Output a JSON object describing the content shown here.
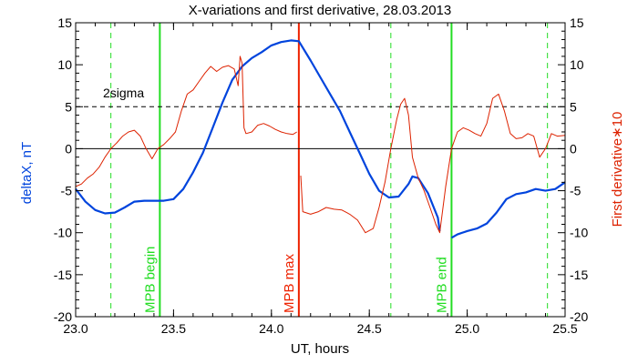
{
  "chart_data": {
    "type": "line",
    "title": "X-variations and first derivative, 28.03.2013",
    "xlabel": "UT, hours",
    "ylabel_left": "deltaX, nT",
    "ylabel_right": "First derivative∗10",
    "xlim": [
      23.0,
      25.5
    ],
    "ylim": [
      -20,
      15
    ],
    "x_ticks": [
      "23.0",
      "23.5",
      "24.0",
      "24.5",
      "25.0",
      "25.5"
    ],
    "x_tick_values": [
      23.0,
      23.5,
      24.0,
      24.5,
      25.0,
      25.5
    ],
    "y_ticks_left": [
      "15",
      "10",
      "5",
      "0",
      "-5",
      "-10",
      "-15",
      "-20"
    ],
    "y_ticks_right": [
      "15",
      "10",
      "5",
      "0",
      "-5",
      "-10",
      "-15",
      "-20"
    ],
    "y_tick_values": [
      15,
      10,
      5,
      0,
      -5,
      -10,
      -15,
      -20
    ],
    "grid": false,
    "sigma_label": "2sigma",
    "sigma_level": 5,
    "zero_level": 0,
    "colors": {
      "deltaX": "#0044dd",
      "derivative": "#dd2200",
      "mpb_markers": "#22dd22",
      "max_marker": "#ee2200",
      "axes": "#000000"
    },
    "markers": [
      {
        "name": "MPB begin",
        "x": 23.43,
        "style": "solid",
        "color": "#22dd22"
      },
      {
        "name": "MPB max",
        "x": 24.14,
        "style": "solid",
        "color": "#ee2200"
      },
      {
        "name": "MPB end",
        "x": 24.92,
        "style": "solid",
        "color": "#22dd22"
      }
    ],
    "dashed_markers": [
      23.18,
      24.61,
      25.41
    ],
    "series": [
      {
        "id": "deltaX",
        "name": "deltaX, nT",
        "color": "#0044dd",
        "segments": [
          {
            "x": [
              23.0,
              23.05,
              23.1,
              23.15,
              23.2,
              23.25,
              23.3,
              23.35,
              23.4,
              23.45,
              23.5,
              23.55,
              23.6,
              23.65,
              23.7,
              23.75,
              23.8,
              23.85,
              23.9,
              23.95,
              24.0,
              24.05,
              24.1,
              24.14,
              24.2,
              24.25,
              24.3,
              24.35,
              24.4,
              24.45,
              24.5,
              24.55,
              24.6,
              24.65,
              24.7,
              24.72,
              24.75,
              24.8,
              24.85,
              24.86
            ],
            "y": [
              -4.8,
              -6.3,
              -7.3,
              -7.7,
              -7.6,
              -7.0,
              -6.3,
              -6.2,
              -6.2,
              -6.2,
              -6.0,
              -4.8,
              -2.8,
              -0.5,
              2.5,
              5.5,
              8.2,
              9.8,
              10.8,
              11.5,
              12.3,
              12.7,
              12.9,
              12.8,
              10.5,
              8.5,
              6.5,
              4.5,
              2.0,
              -0.5,
              -3.0,
              -5.0,
              -5.8,
              -5.7,
              -4.2,
              -3.3,
              -3.5,
              -5.3,
              -8.2,
              -9.8
            ]
          },
          {
            "x": [
              24.92,
              24.95,
              25.0,
              25.05,
              25.1,
              25.15,
              25.2,
              25.25,
              25.3,
              25.35,
              25.4,
              25.45,
              25.5
            ],
            "y": [
              -10.6,
              -10.2,
              -9.8,
              -9.5,
              -8.9,
              -7.6,
              -6.0,
              -5.4,
              -5.2,
              -4.8,
              -5.0,
              -4.8,
              -4.0
            ]
          }
        ]
      },
      {
        "id": "derivative",
        "name": "First derivative∗10",
        "color": "#dd2200",
        "segments": [
          {
            "x": [
              23.0,
              23.03,
              23.06,
              23.09,
              23.12,
              23.15,
              23.18,
              23.21,
              23.24,
              23.27,
              23.3,
              23.33,
              23.36,
              23.39,
              23.42,
              23.45,
              23.48,
              23.51,
              23.54,
              23.57,
              23.6,
              23.63,
              23.66,
              23.69,
              23.72,
              23.75,
              23.78,
              23.81,
              23.83,
              23.84,
              23.85,
              23.86,
              23.87,
              23.9,
              23.93,
              23.96,
              23.99,
              24.02,
              24.05,
              24.08,
              24.11,
              24.13
            ],
            "y": [
              -4.5,
              -4.2,
              -3.5,
              -3.0,
              -2.2,
              -1.0,
              0.0,
              0.7,
              1.5,
              2.0,
              2.2,
              1.5,
              0.0,
              -1.2,
              0.0,
              0.5,
              1.2,
              2.0,
              4.5,
              6.5,
              7.0,
              8.0,
              9.0,
              9.8,
              9.2,
              9.7,
              9.9,
              9.5,
              7.5,
              11.0,
              10.2,
              2.5,
              1.8,
              2.0,
              2.8,
              3.0,
              2.7,
              2.3,
              2.0,
              1.8,
              1.7,
              2.0
            ]
          },
          {
            "x": [
              24.15,
              24.16,
              24.2,
              24.24,
              24.28,
              24.32,
              24.36,
              24.4,
              24.44,
              24.48,
              24.52,
              24.55,
              24.58,
              24.61,
              24.64,
              24.66,
              24.68,
              24.7,
              24.72,
              24.75,
              24.78,
              24.81,
              24.84,
              24.86,
              24.89,
              24.92,
              24.95,
              24.98,
              25.01,
              25.04,
              25.07,
              25.1,
              25.13,
              25.16,
              25.19,
              25.22,
              25.25,
              25.28,
              25.31,
              25.34,
              25.37,
              25.4,
              25.43,
              25.46,
              25.5
            ],
            "y": [
              -3.2,
              -7.5,
              -7.8,
              -7.5,
              -7.0,
              -7.2,
              -7.3,
              -7.8,
              -8.5,
              -10.0,
              -9.5,
              -7.0,
              -4.0,
              0.0,
              3.5,
              5.3,
              6.0,
              4.0,
              -1.0,
              -3.5,
              -5.0,
              -7.0,
              -9.0,
              -10.0,
              -4.5,
              0.0,
              2.0,
              2.5,
              2.2,
              1.8,
              1.5,
              3.0,
              6.0,
              6.5,
              4.5,
              1.8,
              1.2,
              1.3,
              1.8,
              1.5,
              -1.0,
              0.0,
              1.8,
              1.5,
              1.6
            ]
          }
        ]
      }
    ]
  }
}
